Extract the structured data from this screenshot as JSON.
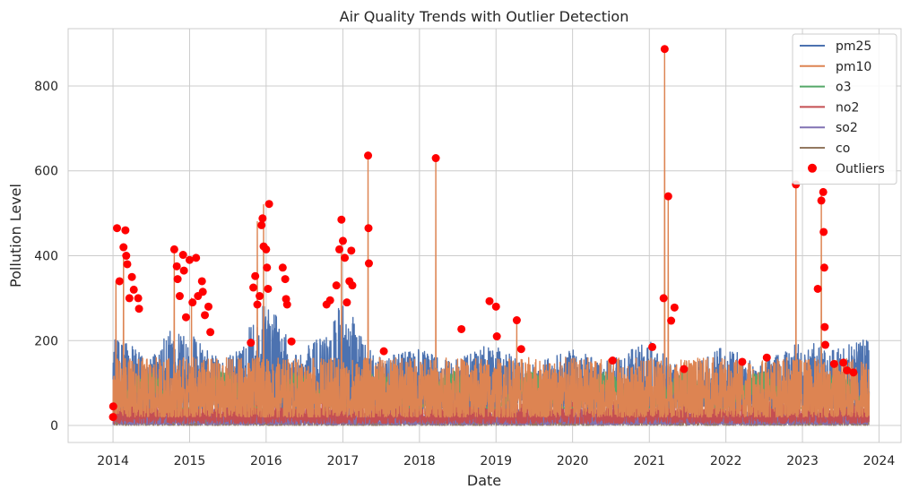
{
  "chart_data": {
    "type": "line",
    "title": "Air Quality Trends with Outlier Detection",
    "xlabel": "Date",
    "ylabel": "Pollution Level",
    "xlim": [
      "2013-06-01",
      "2024-04-15"
    ],
    "ylim": [
      -40,
      935
    ],
    "x_ticks": [
      "2014",
      "2015",
      "2016",
      "2017",
      "2018",
      "2019",
      "2020",
      "2021",
      "2022",
      "2023",
      "2024"
    ],
    "y_ticks": [
      0,
      200,
      400,
      600,
      800
    ],
    "grid": true,
    "legend_position": "top-right",
    "data_range": [
      "2014-01-01",
      "2023-11-15"
    ],
    "series": [
      {
        "name": "pm25",
        "color": "#4c72b0",
        "typical_range": [
          40,
          220
        ],
        "envelope": [
          [
            "2014-01-01",
            210
          ],
          [
            "2014-03-01",
            200
          ],
          [
            "2014-07-01",
            160
          ],
          [
            "2014-10-01",
            230
          ],
          [
            "2015-01-01",
            230
          ],
          [
            "2015-06-01",
            150
          ],
          [
            "2015-11-01",
            250
          ],
          [
            "2016-01-01",
            300
          ],
          [
            "2016-06-01",
            170
          ],
          [
            "2016-11-01",
            230
          ],
          [
            "2017-01-01",
            300
          ],
          [
            "2017-06-01",
            160
          ],
          [
            "2018-01-01",
            180
          ],
          [
            "2018-06-01",
            150
          ],
          [
            "2019-01-01",
            200
          ],
          [
            "2019-06-01",
            140
          ],
          [
            "2020-01-01",
            180
          ],
          [
            "2020-06-01",
            150
          ],
          [
            "2021-01-01",
            200
          ],
          [
            "2021-06-01",
            130
          ],
          [
            "2022-01-01",
            190
          ],
          [
            "2022-06-01",
            140
          ],
          [
            "2023-01-01",
            200
          ],
          [
            "2023-06-01",
            180
          ],
          [
            "2023-11-15",
            210
          ]
        ]
      },
      {
        "name": "pm10",
        "color": "#dd8452",
        "typical_range": [
          20,
          160
        ],
        "peaks": [
          [
            "2014-01-15",
            340
          ],
          [
            "2014-02-20",
            400
          ],
          [
            "2014-10-20",
            410
          ],
          [
            "2015-01-10",
            300
          ],
          [
            "2015-11-20",
            480
          ],
          [
            "2015-12-20",
            520
          ],
          [
            "2016-12-25",
            430
          ],
          [
            "2017-05-01",
            636
          ],
          [
            "2018-03-20",
            630
          ],
          [
            "2019-04-10",
            250
          ],
          [
            "2021-03-15",
            887
          ],
          [
            "2021-04-01",
            540
          ],
          [
            "2022-12-01",
            568
          ],
          [
            "2023-04-01",
            550
          ]
        ]
      },
      {
        "name": "o3",
        "color": "#55a868",
        "typical_range": [
          40,
          130
        ]
      },
      {
        "name": "no2",
        "color": "#c44e52",
        "typical_range": [
          5,
          60
        ]
      },
      {
        "name": "so2",
        "color": "#8172b3",
        "typical_range": [
          2,
          40
        ]
      },
      {
        "name": "co",
        "color": "#937860",
        "typical_range": [
          0,
          25
        ]
      }
    ],
    "outliers": {
      "name": "Outliers",
      "color": "#ff0000",
      "points": [
        [
          "2014-01-01",
          20
        ],
        [
          "2014-01-02",
          45
        ],
        [
          "2014-01-20",
          465
        ],
        [
          "2014-02-01",
          340
        ],
        [
          "2014-02-20",
          420
        ],
        [
          "2014-03-01",
          460
        ],
        [
          "2014-03-05",
          400
        ],
        [
          "2014-03-10",
          380
        ],
        [
          "2014-03-20",
          300
        ],
        [
          "2014-04-01",
          350
        ],
        [
          "2014-04-10",
          320
        ],
        [
          "2014-05-01",
          300
        ],
        [
          "2014-05-05",
          275
        ],
        [
          "2014-10-20",
          415
        ],
        [
          "2014-11-01",
          375
        ],
        [
          "2014-11-05",
          345
        ],
        [
          "2014-11-15",
          305
        ],
        [
          "2014-12-01",
          402
        ],
        [
          "2014-12-05",
          365
        ],
        [
          "2014-12-15",
          255
        ],
        [
          "2015-01-01",
          390
        ],
        [
          "2015-01-15",
          290
        ],
        [
          "2015-02-01",
          395
        ],
        [
          "2015-02-10",
          305
        ],
        [
          "2015-03-01",
          340
        ],
        [
          "2015-03-05",
          315
        ],
        [
          "2015-03-15",
          260
        ],
        [
          "2015-04-01",
          280
        ],
        [
          "2015-04-10",
          220
        ],
        [
          "2015-10-20",
          195
        ],
        [
          "2015-11-01",
          325
        ],
        [
          "2015-11-10",
          352
        ],
        [
          "2015-11-20",
          285
        ],
        [
          "2015-12-01",
          305
        ],
        [
          "2015-12-10",
          472
        ],
        [
          "2015-12-15",
          488
        ],
        [
          "2015-12-20",
          422
        ],
        [
          "2016-01-01",
          415
        ],
        [
          "2016-01-05",
          372
        ],
        [
          "2016-01-10",
          322
        ],
        [
          "2016-01-15",
          522
        ],
        [
          "2016-03-20",
          372
        ],
        [
          "2016-04-01",
          345
        ],
        [
          "2016-04-05",
          298
        ],
        [
          "2016-04-10",
          285
        ],
        [
          "2016-05-01",
          198
        ],
        [
          "2016-10-15",
          285
        ],
        [
          "2016-11-01",
          295
        ],
        [
          "2016-12-01",
          330
        ],
        [
          "2016-12-15",
          415
        ],
        [
          "2016-12-25",
          485
        ],
        [
          "2017-01-01",
          435
        ],
        [
          "2017-01-10",
          395
        ],
        [
          "2017-01-20",
          290
        ],
        [
          "2017-02-01",
          340
        ],
        [
          "2017-02-10",
          412
        ],
        [
          "2017-02-15",
          330
        ],
        [
          "2017-05-01",
          636
        ],
        [
          "2017-05-03",
          465
        ],
        [
          "2017-05-05",
          382
        ],
        [
          "2017-07-15",
          175
        ],
        [
          "2018-03-20",
          630
        ],
        [
          "2018-07-20",
          227
        ],
        [
          "2018-12-01",
          293
        ],
        [
          "2019-01-01",
          280
        ],
        [
          "2019-01-05",
          210
        ],
        [
          "2019-04-10",
          248
        ],
        [
          "2019-05-01",
          180
        ],
        [
          "2020-07-10",
          153
        ],
        [
          "2021-01-15",
          185
        ],
        [
          "2021-03-10",
          300
        ],
        [
          "2021-03-15",
          887
        ],
        [
          "2021-04-01",
          540
        ],
        [
          "2021-04-15",
          247
        ],
        [
          "2021-05-01",
          278
        ],
        [
          "2021-06-15",
          133
        ],
        [
          "2022-03-20",
          150
        ],
        [
          "2022-07-15",
          160
        ],
        [
          "2022-12-01",
          568
        ],
        [
          "2023-03-15",
          322
        ],
        [
          "2023-04-01",
          530
        ],
        [
          "2023-04-10",
          550
        ],
        [
          "2023-04-12",
          456
        ],
        [
          "2023-04-15",
          372
        ],
        [
          "2023-04-17",
          232
        ],
        [
          "2023-04-20",
          190
        ],
        [
          "2023-06-01",
          145
        ],
        [
          "2023-07-15",
          148
        ],
        [
          "2023-08-01",
          130
        ],
        [
          "2023-09-01",
          125
        ]
      ]
    }
  }
}
